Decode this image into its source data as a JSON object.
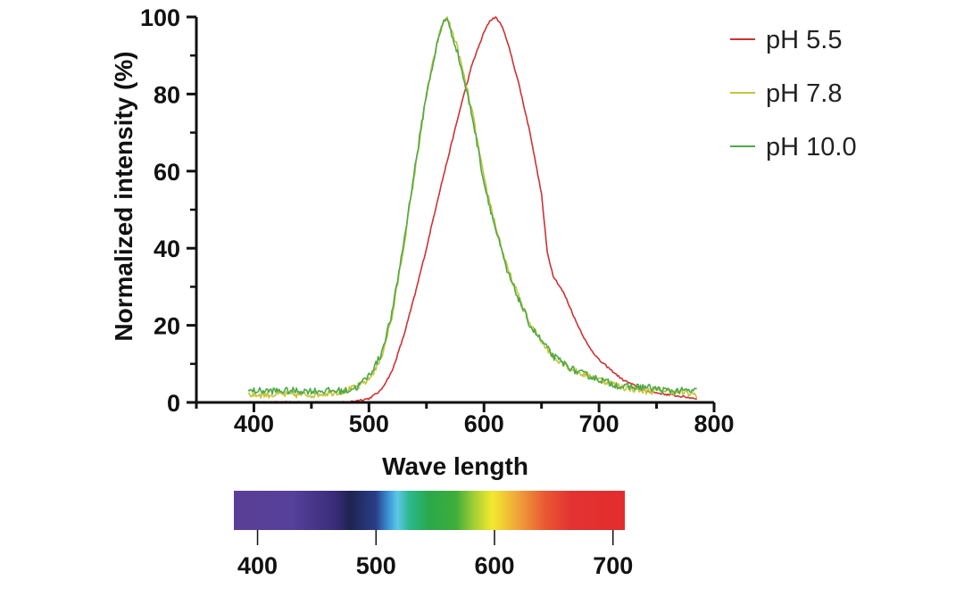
{
  "chart_data": {
    "type": "line",
    "xlabel": "Wave length",
    "ylabel": "Normalized intensity (%)",
    "xlim": [
      350,
      800
    ],
    "ylim": [
      0,
      100
    ],
    "x_ticks": [
      400,
      500,
      600,
      700,
      800
    ],
    "y_ticks": [
      0,
      20,
      40,
      60,
      80,
      100
    ],
    "legend_position": "top-right",
    "series": [
      {
        "name": "pH 5.5",
        "color": "#cc3333",
        "x": [
          395,
          420,
          450,
          480,
          500,
          510,
          520,
          530,
          540,
          550,
          560,
          570,
          580,
          590,
          600,
          605,
          610,
          615,
          620,
          630,
          640,
          650,
          655,
          660,
          670,
          680,
          690,
          700,
          720,
          740,
          760,
          785
        ],
        "y": [
          0,
          0,
          0,
          0,
          1,
          3,
          8,
          17,
          28,
          40,
          53,
          65,
          77,
          88,
          96,
          99,
          100,
          98,
          94,
          83,
          70,
          54,
          39,
          33,
          28,
          21,
          15,
          11,
          6,
          3,
          2,
          1
        ]
      },
      {
        "name": "pH 7.8",
        "color": "#c4c43a",
        "x": [
          395,
          420,
          450,
          480,
          490,
          500,
          510,
          520,
          530,
          540,
          550,
          560,
          565,
          568,
          570,
          575,
          580,
          590,
          600,
          610,
          620,
          640,
          660,
          680,
          700,
          720,
          740,
          760,
          785
        ],
        "y": [
          2,
          2,
          2,
          3,
          4,
          6,
          11,
          22,
          40,
          60,
          80,
          94,
          99,
          100,
          98,
          94,
          88,
          75,
          58,
          46,
          35,
          20,
          12,
          8,
          6,
          4,
          3,
          3,
          2
        ]
      },
      {
        "name": "pH 10.0",
        "color": "#4fa84a",
        "x": [
          395,
          420,
          450,
          480,
          490,
          500,
          510,
          520,
          530,
          540,
          550,
          560,
          565,
          568,
          570,
          575,
          580,
          590,
          600,
          610,
          620,
          640,
          660,
          680,
          700,
          720,
          740,
          760,
          785
        ],
        "y": [
          3,
          3,
          3,
          3,
          4,
          7,
          12,
          23,
          41,
          61,
          80,
          94,
          99,
          100,
          97,
          93,
          87,
          74,
          57,
          45,
          34,
          20,
          12,
          8,
          6,
          4,
          4,
          3,
          3
        ]
      }
    ],
    "spectrum_bar": {
      "ticks": [
        400,
        500,
        600,
        700
      ],
      "range": [
        380,
        710
      ],
      "stops": [
        {
          "nm": 380,
          "color": "#5b3f96"
        },
        {
          "nm": 430,
          "color": "#55409a"
        },
        {
          "nm": 465,
          "color": "#3b2c7a"
        },
        {
          "nm": 478,
          "color": "#1e2350"
        },
        {
          "nm": 500,
          "color": "#2a3f88"
        },
        {
          "nm": 510,
          "color": "#3b8fd6"
        },
        {
          "nm": 518,
          "color": "#5cc8e8"
        },
        {
          "nm": 528,
          "color": "#2bb88d"
        },
        {
          "nm": 545,
          "color": "#2aa84a"
        },
        {
          "nm": 568,
          "color": "#3fae3b"
        },
        {
          "nm": 582,
          "color": "#9fcd36"
        },
        {
          "nm": 598,
          "color": "#f2ea2e"
        },
        {
          "nm": 620,
          "color": "#f0a33a"
        },
        {
          "nm": 642,
          "color": "#ea5a32"
        },
        {
          "nm": 665,
          "color": "#e33232"
        },
        {
          "nm": 710,
          "color": "#e42c2c"
        }
      ]
    }
  }
}
